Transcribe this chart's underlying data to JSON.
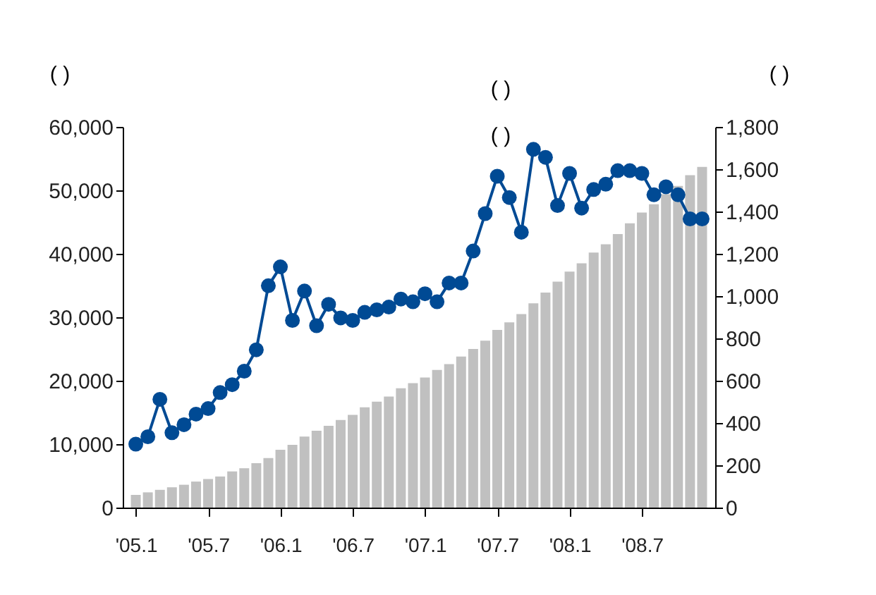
{
  "chart_data": {
    "type": "bar",
    "ylabel": "(        )",
    "y2label": "(        )",
    "annotations": [
      "(  )",
      "(  )"
    ],
    "categories": [
      "'05.1",
      null,
      null,
      null,
      null,
      null,
      "'05.7",
      null,
      null,
      null,
      null,
      null,
      "'06.1",
      null,
      null,
      null,
      null,
      null,
      "'06.7",
      null,
      null,
      null,
      null,
      null,
      "'07.1",
      null,
      null,
      null,
      null,
      null,
      "'07.7",
      null,
      null,
      null,
      null,
      null,
      "'08.1",
      null,
      null,
      null,
      null,
      null,
      "'08.7",
      null,
      null,
      null,
      null,
      null
    ],
    "series": [
      {
        "color": "#c0c0c0",
        "values": [
          2000,
          2400,
          2800,
          3200,
          3600,
          4100,
          4500,
          4900,
          5700,
          6200,
          7000,
          7800,
          9100,
          9900,
          11200,
          12100,
          12900,
          13800,
          14600,
          15800,
          16700,
          17500,
          18800,
          19600,
          20500,
          21700,
          22600,
          23800,
          25000,
          26300,
          28000,
          29200,
          30500,
          32200,
          33900,
          35600,
          37200,
          38500,
          40200,
          41500,
          43100,
          44800,
          46500,
          47800,
          49400,
          50700,
          52400,
          53700
        ]
      },
      {
        "type": "line",
        "axis": "y2",
        "color": "#004a94",
        "marker": "circle",
        "values": [
          300,
          335,
          512,
          354,
          392,
          442,
          468,
          544,
          581,
          645,
          746,
          1049,
          1138,
          885,
          1024,
          860,
          961,
          897,
          885,
          923,
          935,
          948,
          986,
          973,
          1011,
          973,
          1062,
          1062,
          1213,
          1390,
          1567,
          1466,
          1302,
          1694,
          1656,
          1428,
          1580,
          1416,
          1504,
          1529,
          1593,
          1593,
          1580,
          1479,
          1517,
          1479,
          1365,
          1365
        ]
      }
    ],
    "ylim": [
      0,
      60000
    ],
    "yticks": [
      0,
      {
        "value": 10000,
        "label": "10,000"
      },
      {
        "value": 20000,
        "label": "20,000"
      },
      {
        "value": 30000,
        "label": "30,000"
      },
      {
        "value": 40000,
        "label": "40,000"
      },
      {
        "value": 50000,
        "label": "50,000"
      },
      {
        "value": 60000,
        "label": "60,000"
      }
    ],
    "y2lim": [
      0,
      1800
    ],
    "y2ticks": [
      0,
      200,
      400,
      600,
      800,
      {
        "value": 1000,
        "label": "1,000"
      },
      {
        "value": 1200,
        "label": "1,200"
      },
      {
        "value": 1400,
        "label": "1,400"
      },
      {
        "value": 1600,
        "label": "1,600"
      },
      {
        "value": 1800,
        "label": "1,800"
      }
    ]
  }
}
